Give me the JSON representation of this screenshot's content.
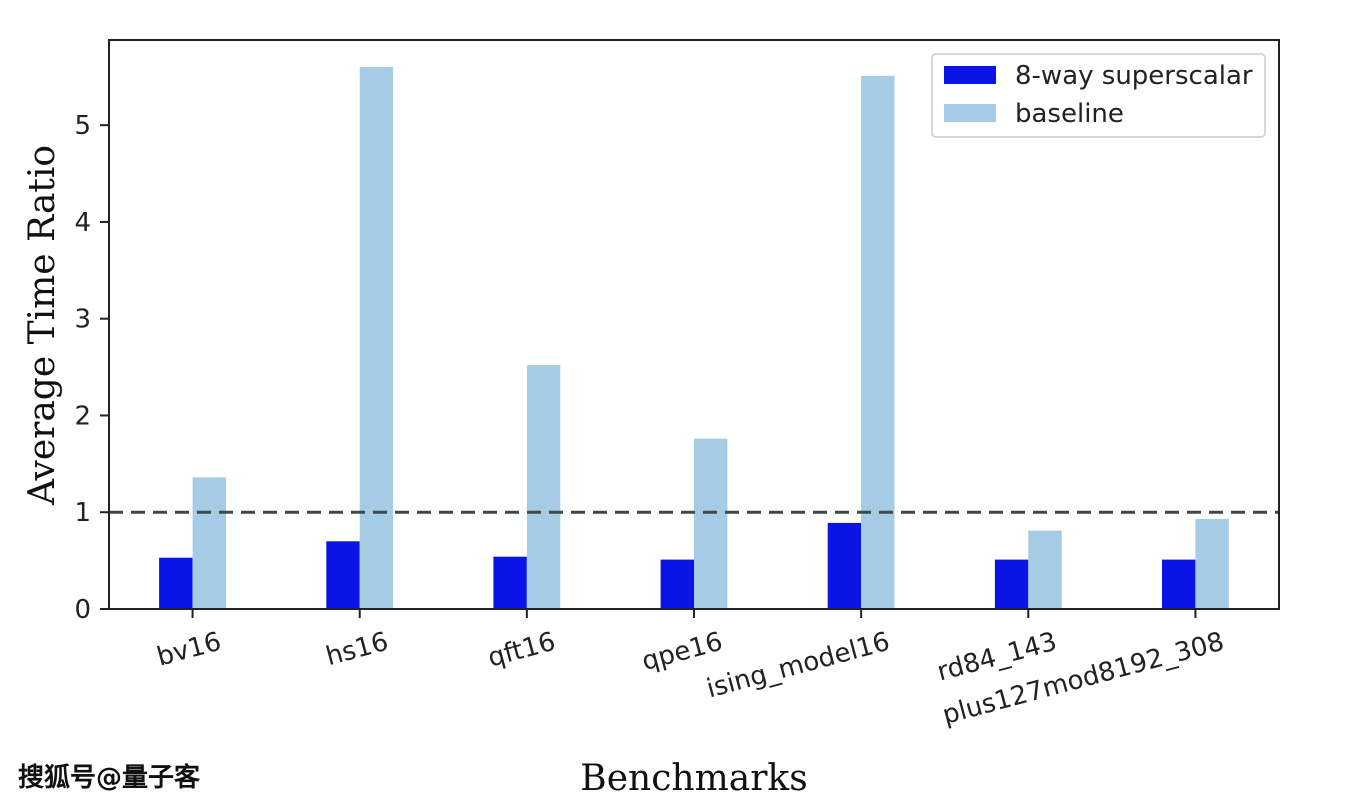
{
  "chart_data": {
    "type": "bar",
    "categories": [
      "bv16",
      "hs16",
      "qft16",
      "qpe16",
      "ising_model16",
      "rd84_143",
      "plus127mod8192_308"
    ],
    "series": [
      {
        "name": "8-way superscalar",
        "color": "#0a14e6",
        "values": [
          0.53,
          0.7,
          0.54,
          0.51,
          0.89,
          0.51,
          0.51
        ]
      },
      {
        "name": "baseline",
        "color": "#a6cbe4",
        "values": [
          1.36,
          5.6,
          2.52,
          1.76,
          5.51,
          0.81,
          0.93
        ]
      }
    ],
    "xlabel": "Benchmarks",
    "ylabel": "Average Time Ratio",
    "ylim": [
      0,
      5.88
    ],
    "yticks": [
      0,
      1,
      2,
      3,
      4,
      5
    ],
    "reference_line": {
      "y": 1,
      "style": "dashed",
      "color": "#3f4a48"
    },
    "legend_position": "top-right",
    "grid": false
  },
  "watermark": "搜狐号@量子客"
}
